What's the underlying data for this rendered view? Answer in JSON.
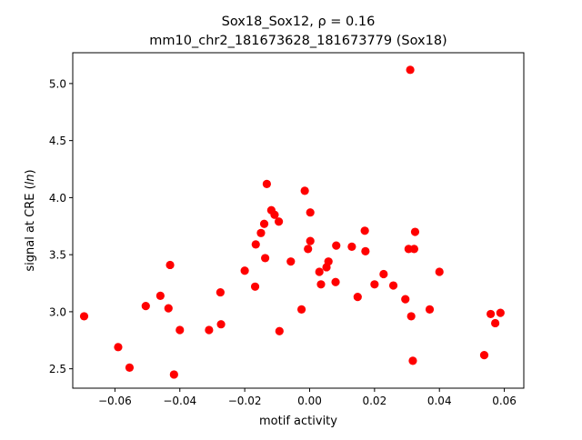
{
  "chart_data": {
    "type": "scatter",
    "title_line1": "Sox18_Sox12, ρ = 0.16",
    "title_line2": "mm10_chr2_181673628_181673779 (Sox18)",
    "xlabel": "motif activity",
    "ylabel": "signal at CRE (ln)",
    "xlim": [
      -0.073,
      0.066
    ],
    "ylim": [
      2.33,
      5.27
    ],
    "xticks": [
      -0.06,
      -0.04,
      -0.02,
      0.0,
      0.02,
      0.04,
      0.06
    ],
    "xtick_labels": [
      "−0.06",
      "−0.04",
      "−0.02",
      "0.00",
      "0.02",
      "0.04",
      "0.06"
    ],
    "yticks": [
      2.5,
      3.0,
      3.5,
      4.0,
      4.5,
      5.0
    ],
    "ytick_labels": [
      "2.5",
      "3.0",
      "3.5",
      "4.0",
      "4.5",
      "5.0"
    ],
    "grid": false,
    "legend": "none",
    "marker_color": "#ff0000",
    "points": [
      {
        "x": -0.0695,
        "y": 2.96
      },
      {
        "x": -0.059,
        "y": 2.69
      },
      {
        "x": -0.0555,
        "y": 2.51
      },
      {
        "x": -0.0505,
        "y": 3.05
      },
      {
        "x": -0.046,
        "y": 3.14
      },
      {
        "x": -0.0435,
        "y": 3.03
      },
      {
        "x": -0.043,
        "y": 3.41
      },
      {
        "x": -0.0418,
        "y": 2.45
      },
      {
        "x": -0.04,
        "y": 2.84
      },
      {
        "x": -0.031,
        "y": 2.84
      },
      {
        "x": -0.0275,
        "y": 3.17
      },
      {
        "x": -0.0273,
        "y": 2.89
      },
      {
        "x": -0.02,
        "y": 3.36
      },
      {
        "x": -0.0168,
        "y": 3.22
      },
      {
        "x": -0.0166,
        "y": 3.59
      },
      {
        "x": -0.015,
        "y": 3.69
      },
      {
        "x": -0.014,
        "y": 3.77
      },
      {
        "x": -0.0137,
        "y": 3.47
      },
      {
        "x": -0.0132,
        "y": 4.12
      },
      {
        "x": -0.0118,
        "y": 3.89
      },
      {
        "x": -0.0108,
        "y": 3.85
      },
      {
        "x": -0.0095,
        "y": 3.79
      },
      {
        "x": -0.0093,
        "y": 2.83
      },
      {
        "x": -0.0058,
        "y": 3.44
      },
      {
        "x": -0.0025,
        "y": 3.02
      },
      {
        "x": -0.0015,
        "y": 4.06
      },
      {
        "x": -0.0005,
        "y": 3.55
      },
      {
        "x": 0.0002,
        "y": 3.87
      },
      {
        "x": 0.0002,
        "y": 3.62
      },
      {
        "x": 0.003,
        "y": 3.35
      },
      {
        "x": 0.0035,
        "y": 3.24
      },
      {
        "x": 0.0052,
        "y": 3.39
      },
      {
        "x": 0.0058,
        "y": 3.44
      },
      {
        "x": 0.008,
        "y": 3.26
      },
      {
        "x": 0.0082,
        "y": 3.58
      },
      {
        "x": 0.013,
        "y": 3.57
      },
      {
        "x": 0.0148,
        "y": 3.13
      },
      {
        "x": 0.017,
        "y": 3.71
      },
      {
        "x": 0.0172,
        "y": 3.53
      },
      {
        "x": 0.02,
        "y": 3.24
      },
      {
        "x": 0.0228,
        "y": 3.33
      },
      {
        "x": 0.0258,
        "y": 3.23
      },
      {
        "x": 0.0295,
        "y": 3.11
      },
      {
        "x": 0.0305,
        "y": 3.55
      },
      {
        "x": 0.031,
        "y": 5.12
      },
      {
        "x": 0.0313,
        "y": 2.96
      },
      {
        "x": 0.0318,
        "y": 2.57
      },
      {
        "x": 0.0322,
        "y": 3.55
      },
      {
        "x": 0.0325,
        "y": 3.7
      },
      {
        "x": 0.037,
        "y": 3.02
      },
      {
        "x": 0.04,
        "y": 3.35
      },
      {
        "x": 0.0538,
        "y": 2.62
      },
      {
        "x": 0.0558,
        "y": 2.98
      },
      {
        "x": 0.0572,
        "y": 2.9
      },
      {
        "x": 0.0588,
        "y": 2.99
      }
    ]
  }
}
